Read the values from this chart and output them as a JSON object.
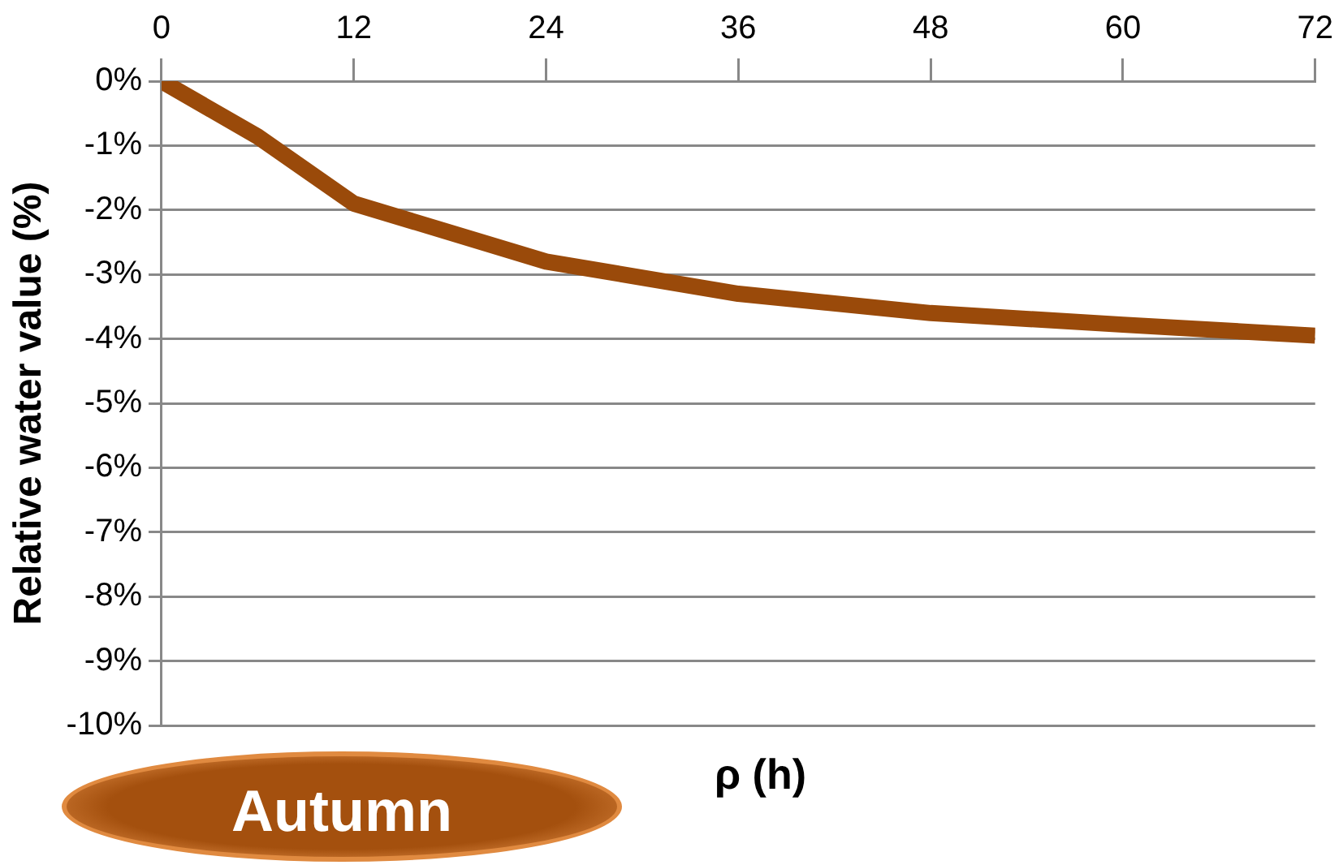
{
  "chart_data": {
    "type": "line",
    "xlabel": "ρ (h)",
    "ylabel": "Relative water value (%)",
    "annotations": [
      "Autumn"
    ],
    "x": [
      0,
      6,
      12,
      24,
      36,
      48,
      60,
      72
    ],
    "series": [
      {
        "color": "#9a4a0a",
        "values": [
          0,
          -0.86,
          -1.9,
          -2.8,
          -3.3,
          -3.6,
          -3.78,
          -3.95
        ]
      }
    ],
    "xlim": [
      0,
      72
    ],
    "xticks": [
      0,
      12,
      24,
      36,
      48,
      60,
      72
    ],
    "ylim": [
      -10,
      0
    ],
    "yticks": [
      {
        "value": 0,
        "label": "0%"
      },
      {
        "value": -1,
        "label": "-1%"
      },
      {
        "value": -2,
        "label": "-2%"
      },
      {
        "value": -3,
        "label": "-3%"
      },
      {
        "value": -4,
        "label": "-4%"
      },
      {
        "value": -5,
        "label": "-5%"
      },
      {
        "value": -6,
        "label": "-6%"
      },
      {
        "value": -7,
        "label": "-7%"
      },
      {
        "value": -8,
        "label": "-8%"
      },
      {
        "value": -9,
        "label": "-9%"
      },
      {
        "value": -10,
        "label": "-10%"
      }
    ],
    "grid": "y",
    "marker": "none",
    "line_style": "solid"
  }
}
